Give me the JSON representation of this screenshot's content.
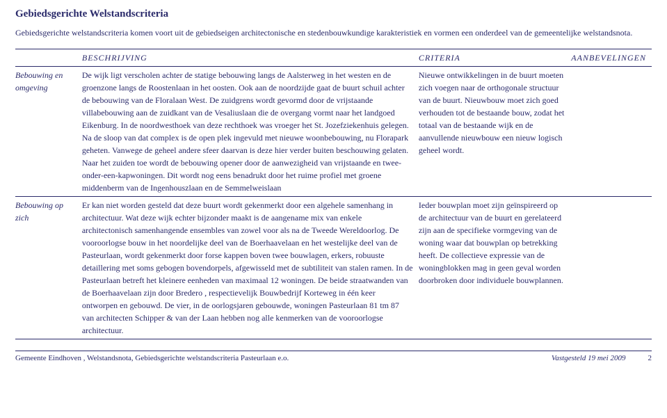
{
  "page_title": "Gebiedsgerichte Welstandscriteria",
  "intro": "Gebiedsgerichte welstandscriteria komen voort uit de gebiedseigen architectonische en stedenbouwkundige karakteristiek en vormen een onderdeel van de gemeentelijke welstandsnota.",
  "headers": {
    "label": "",
    "beschrijving": "BESCHRIJVING",
    "criteria": "CRITERIA",
    "aanbevelingen": "AANBEVELINGEN"
  },
  "rows": [
    {
      "label": "Bebouwing en omgeving",
      "beschrijving": "De wijk ligt verscholen achter de statige bebouwing langs de Aalsterweg in het westen en de groenzone langs de Roostenlaan in het oosten. Ook aan de noordzijde gaat de buurt schuil achter de bebouwing van de Floralaan West. De zuidgrens wordt gevormd door de vrijstaande villabebouwing aan de zuidkant van de Vesaliuslaan die de overgang vormt naar het landgoed Eikenburg. In de noordwesthoek van deze rechthoek was vroeger het St. Jozefziekenhuis gelegen. Na de sloop van dat complex is de open plek ingevuld met nieuwe woonbebouwing, nu Florapark geheten. Vanwege de geheel andere sfeer daarvan is deze hier verder buiten beschouwing gelaten. Naar het zuiden toe wordt de bebouwing opener door de aanwezigheid van vrijstaande en twee-onder-een-kapwoningen. Dit wordt nog eens benadrukt door het ruime profiel met groene middenberm van de Ingenhouszlaan en de Semmelweislaan",
      "criteria": "Nieuwe ontwikkelingen in de buurt moeten zich voegen naar de orthogonale structuur van de buurt. Nieuwbouw moet zich goed verhouden tot de bestaande bouw, zodat het totaal van de bestaande wijk en de aanvullende nieuwbouw een nieuw logisch geheel wordt.",
      "aanbevelingen": ""
    },
    {
      "label": "Bebouwing op zich",
      "beschrijving": "Er kan niet worden gesteld dat deze buurt wordt gekenmerkt door een algehele samenhang in architectuur. Wat deze wijk echter bijzonder maakt is de aangename mix van enkele architectonisch samenhangende ensembles van zowel voor als na de Tweede Wereldoorlog. De vooroorlogse bouw in het noordelijke deel van de Boerhaavelaan en het westelijke deel van de Pasteurlaan, wordt gekenmerkt door forse kappen boven twee bouwlagen, erkers, robuuste detaillering met soms gebogen bovendorpels, afgewisseld met de subtiliteit van stalen ramen. In de Pasteurlaan betreft het kleinere eenheden van maximaal 12 woningen. De beide straatwanden van de Boerhaavelaan zijn door Bredero , respectievelijk Bouwbedrijf Korteweg in één keer ontworpen en gebouwd. De vier, in de oorlogsjaren gebouwde, woningen Pasteurlaan 81 tm 87 van architecten Schipper & van der Laan hebben nog alle kenmerken van de vooroorlogse architectuur.",
      "criteria": "Ieder bouwplan moet zijn geïnspireerd op de architectuur van de buurt en gerelateerd zijn aan de specifieke vormgeving van de woning waar dat bouwplan op betrekking heeft. De collectieve expressie van de woningblokken mag in geen geval worden doorbroken door individuele bouwplannen.",
      "aanbevelingen": ""
    }
  ],
  "footer": {
    "left": "Gemeente Eindhoven , Welstandsnota, Gebiedsgerichte welstandscriteria Pasteurlaan e.o.",
    "date": "Vastgesteld 19 mei 2009",
    "page": "2"
  }
}
